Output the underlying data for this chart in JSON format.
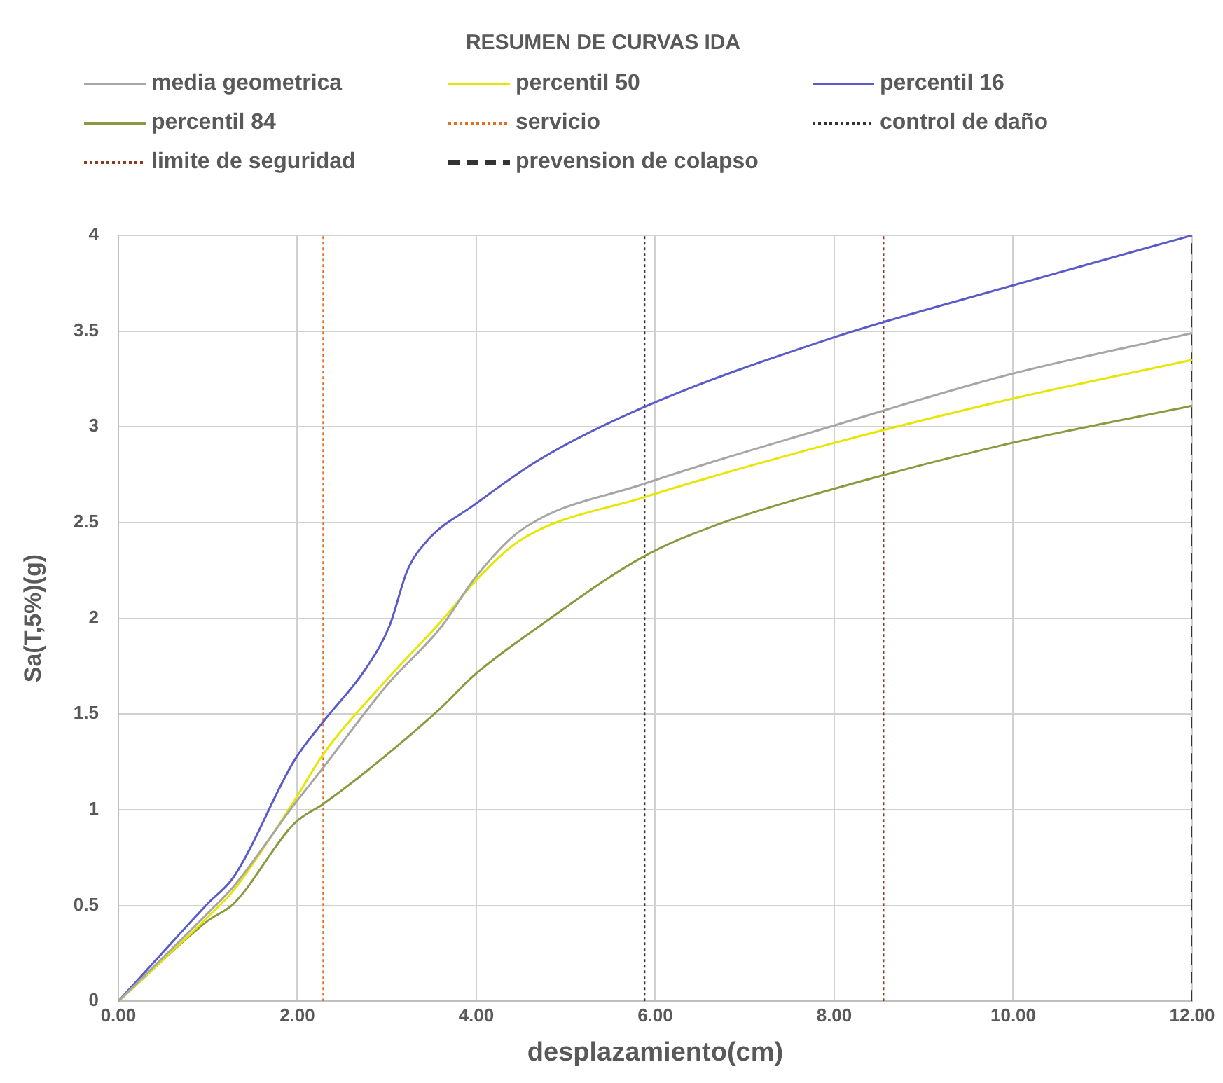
{
  "chart_data": {
    "type": "line",
    "title": "RESUMEN DE CURVAS IDA",
    "xlabel": "desplazamiento(cm)",
    "ylabel": "Sa(T,5%)(g)",
    "series": [
      {
        "name": "media geometrica",
        "color": "#a6a6a6",
        "x": [
          0,
          1.0,
          1.29,
          1.97,
          2.29,
          3.0,
          3.6,
          4.0,
          4.5,
          5.86,
          7.95,
          9.93,
          12
        ],
        "values": [
          0,
          0.46,
          0.6,
          1.03,
          1.22,
          1.65,
          1.95,
          2.22,
          2.46,
          2.7,
          3.0,
          3.27,
          3.49
        ]
      },
      {
        "name": "percentil 50",
        "color": "#e6e600",
        "x": [
          0,
          1.0,
          1.29,
          1.97,
          2.29,
          3.0,
          3.6,
          4.0,
          4.5,
          5.86,
          7.95,
          9.93,
          12
        ],
        "values": [
          0,
          0.44,
          0.58,
          1.05,
          1.29,
          1.68,
          1.98,
          2.2,
          2.41,
          2.63,
          2.91,
          3.14,
          3.35
        ]
      },
      {
        "name": "percentil 16",
        "color": "#5b5bc8",
        "x": [
          0,
          1.0,
          1.29,
          1.97,
          2.29,
          2.77,
          3.03,
          3.23,
          3.46,
          3.97,
          4.71,
          5.86,
          7.95,
          9.93,
          12
        ],
        "values": [
          0,
          0.51,
          0.65,
          1.26,
          1.46,
          1.74,
          1.96,
          2.25,
          2.41,
          2.59,
          2.83,
          3.1,
          3.46,
          3.73,
          4.0
        ]
      },
      {
        "name": "percentil 84",
        "color": "#8a9a40",
        "x": [
          0,
          1.0,
          1.29,
          1.97,
          2.29,
          2.77,
          3.6,
          3.97,
          4.71,
          5.86,
          6.7,
          7.95,
          9.93,
          12
        ],
        "values": [
          0,
          0.42,
          0.51,
          0.93,
          1.03,
          1.2,
          1.53,
          1.7,
          1.96,
          2.32,
          2.49,
          2.67,
          2.91,
          3.11
        ]
      }
    ],
    "ref_lines": [
      {
        "axis": "x",
        "value": 2.29,
        "label": "servicio",
        "color": "#e07020",
        "line_style": "dotted"
      },
      {
        "axis": "x",
        "value": 5.88,
        "label": "control de daño",
        "color": "#333333",
        "line_style": "dotted"
      },
      {
        "axis": "x",
        "value": 8.55,
        "label": "limite de seguridad",
        "color": "#8b3a1a",
        "line_style": "dotted"
      },
      {
        "axis": "x",
        "value": 12,
        "label": "prevension de colapso",
        "color": "#333333",
        "line_style": "dashed"
      }
    ],
    "xlim": [
      0,
      12
    ],
    "xticks": [
      {
        "value": 0,
        "label": "0.00"
      },
      {
        "value": 2,
        "label": "2.00"
      },
      {
        "value": 4,
        "label": "4.00"
      },
      {
        "value": 6,
        "label": "6.00"
      },
      {
        "value": 8,
        "label": "8.00"
      },
      {
        "value": 10,
        "label": "10.00"
      },
      {
        "value": 12,
        "label": "12.00"
      }
    ],
    "ylim": [
      0,
      4
    ],
    "yticks": [
      0,
      0.5,
      1,
      1.5,
      2,
      2.5,
      3,
      3.5,
      4
    ],
    "grid": true,
    "legend": "top",
    "marker": "none",
    "line_style": "solid"
  }
}
